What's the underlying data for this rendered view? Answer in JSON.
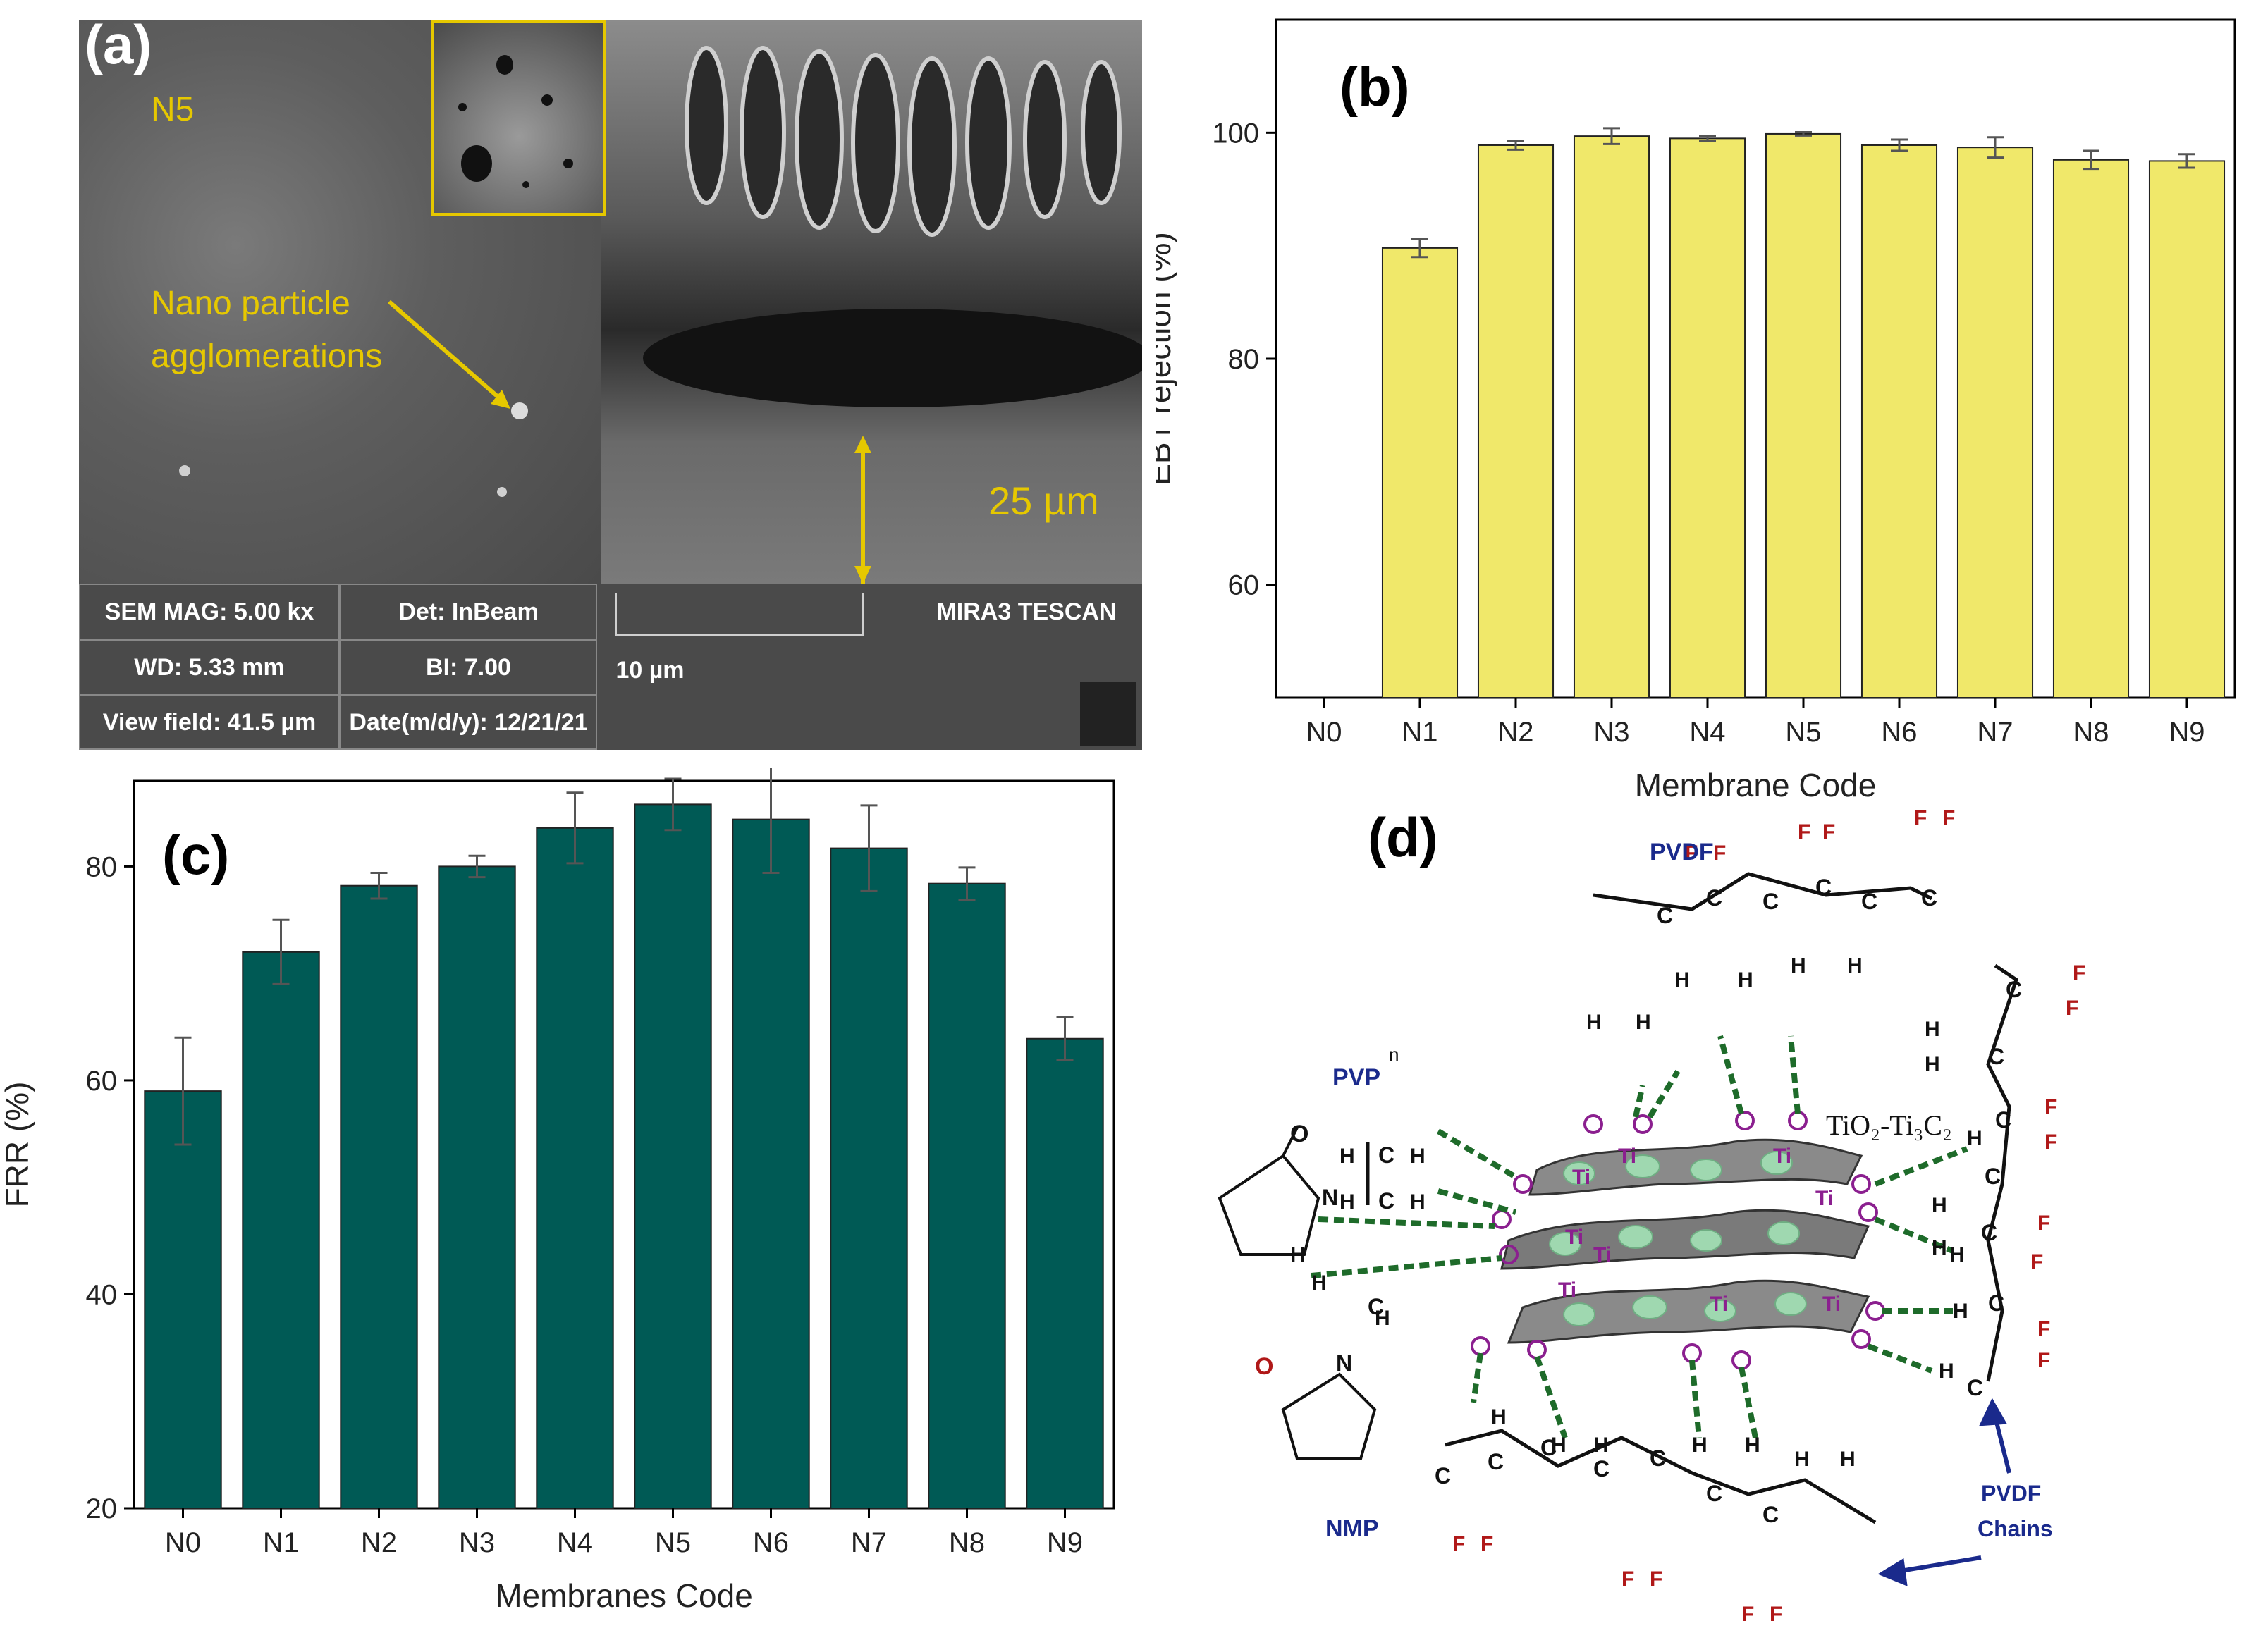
{
  "panel_a": {
    "tag": "(a)",
    "sample_label": "N5",
    "annotation_line1": "Nano particle",
    "annotation_line2": "agglomerations",
    "thickness_label": "25 µm",
    "info": {
      "sem_mag": "SEM MAG: 5.00 kx",
      "det": "Det: InBeam",
      "brand": "MIRA3 TESCAN",
      "wd": "WD: 5.33 mm",
      "bi": "BI: 7.00",
      "scale": "10 µm",
      "view_field": "View field: 41.5 µm",
      "date": "Date(m/d/y): 12/21/21"
    }
  },
  "chart_data": [
    {
      "id": "b",
      "type": "bar",
      "tag": "(b)",
      "categories": [
        "N0",
        "N1",
        "N2",
        "N3",
        "N4",
        "N5",
        "N6",
        "N7",
        "N8",
        "N9"
      ],
      "values": [
        null,
        89.8,
        98.9,
        99.7,
        99.5,
        99.9,
        98.9,
        98.7,
        97.6,
        97.5
      ],
      "errors": [
        0,
        0.8,
        0.4,
        0.7,
        0.2,
        0.15,
        0.5,
        0.9,
        0.8,
        0.6
      ],
      "ylim": [
        50,
        110
      ],
      "yticks": [
        60,
        80,
        100
      ],
      "xlabel": "Membrane Code",
      "ylabel": "EBT rejection (%)",
      "bar_color": "#f0e86a"
    },
    {
      "id": "c",
      "type": "bar",
      "tag": "(c)",
      "categories": [
        "N0",
        "N1",
        "N2",
        "N3",
        "N4",
        "N5",
        "N6",
        "N7",
        "N8",
        "N9"
      ],
      "values": [
        59,
        72,
        78.2,
        80,
        83.6,
        85.8,
        84.4,
        81.7,
        78.4,
        63.9
      ],
      "errors": [
        5,
        3,
        1.2,
        1,
        3.3,
        2.4,
        5,
        4,
        1.5,
        2
      ],
      "ylim": [
        20,
        88
      ],
      "yticks": [
        20,
        40,
        60,
        80
      ],
      "xlabel": "Membranes Code",
      "ylabel": "FRR (%)",
      "bar_color": "#005a55"
    }
  ],
  "panel_d": {
    "tag": "(d)",
    "pvdf_top": "PVDF",
    "pvp": "PVP",
    "nmp": "NMP",
    "tio2": "TiO₂-Ti₃C₂",
    "chains_line1": "PVDF",
    "chains_line2": "Chains",
    "n_sub": "n"
  },
  "colors": {
    "hbond": "#1e6b2a",
    "ti": "#8b1f8f",
    "fluorine": "#b01818",
    "label_blue": "#1a2a8c"
  }
}
